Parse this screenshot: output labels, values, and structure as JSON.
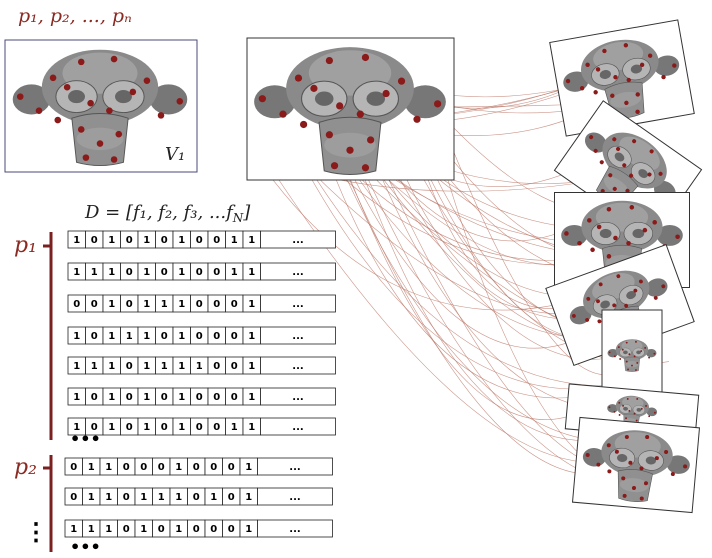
{
  "top_label": "p₁, p₂, ..., pₙ",
  "view_label": "V₁",
  "matrix_label": {
    "text": "D = [f₁, f₂, f₃, ...f",
    "sub": "N",
    "end": "]"
  },
  "groups": [
    {
      "label": "p₁",
      "rows": [
        [
          "1",
          "0",
          "1",
          "0",
          "1",
          "0",
          "1",
          "0",
          "0",
          "1",
          "1",
          "..."
        ],
        [
          "1",
          "1",
          "1",
          "0",
          "1",
          "0",
          "1",
          "0",
          "0",
          "1",
          "1",
          "..."
        ],
        [
          "0",
          "0",
          "1",
          "0",
          "1",
          "1",
          "1",
          "0",
          "0",
          "0",
          "1",
          "..."
        ],
        [
          "1",
          "0",
          "1",
          "1",
          "1",
          "0",
          "1",
          "0",
          "0",
          "0",
          "1",
          "..."
        ],
        [
          "1",
          "1",
          "1",
          "0",
          "1",
          "1",
          "1",
          "1",
          "0",
          "0",
          "1",
          "..."
        ],
        [
          "1",
          "0",
          "1",
          "0",
          "1",
          "0",
          "1",
          "0",
          "0",
          "0",
          "1",
          "..."
        ],
        [
          "1",
          "0",
          "1",
          "0",
          "1",
          "0",
          "1",
          "0",
          "0",
          "1",
          "1",
          "..."
        ]
      ],
      "more": "•••"
    },
    {
      "label": "p₂",
      "rows": [
        [
          "0",
          "1",
          "1",
          "0",
          "0",
          "0",
          "1",
          "0",
          "0",
          "0",
          "1",
          "..."
        ],
        [
          "0",
          "1",
          "1",
          "0",
          "1",
          "1",
          "1",
          "0",
          "1",
          "0",
          "1",
          "..."
        ],
        [
          "1",
          "1",
          "1",
          "0",
          "1",
          "0",
          "1",
          "0",
          "0",
          "0",
          "1",
          "..."
        ]
      ],
      "more": "•••"
    }
  ],
  "more_groups": "⋮"
}
